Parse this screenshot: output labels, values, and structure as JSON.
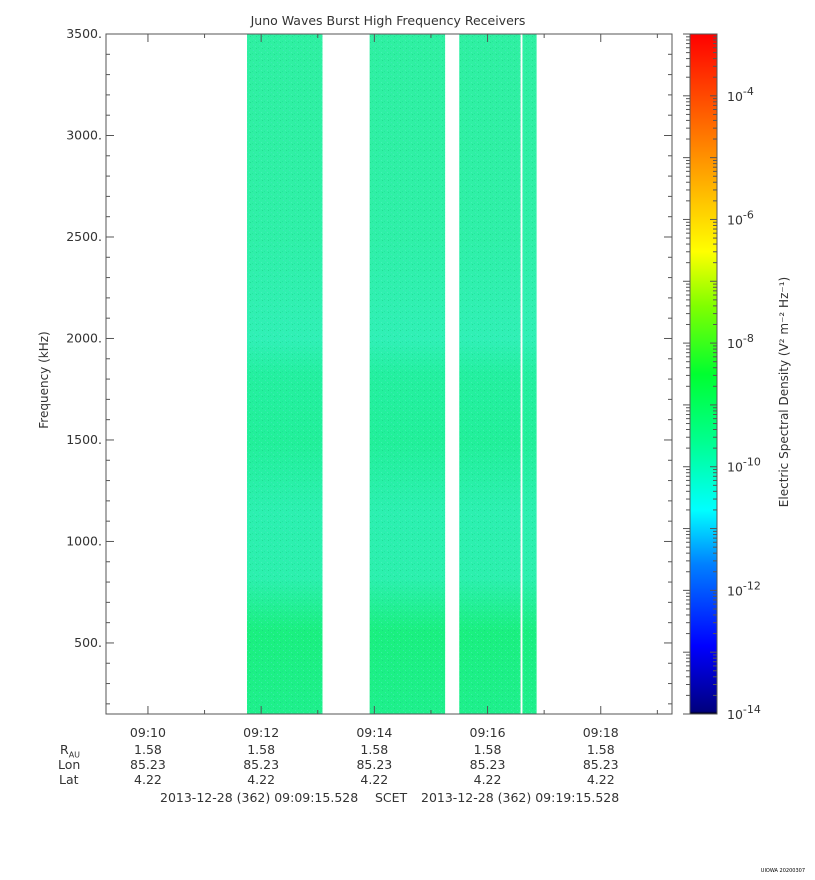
{
  "chart_data": {
    "type": "heatmap",
    "title": "Juno Waves Burst High Frequency Receivers",
    "ylabel": "Frequency (kHz)",
    "ylim": [
      150,
      3500
    ],
    "y_ticks": [
      500,
      1000,
      1500,
      2000,
      2500,
      3000,
      3500
    ],
    "y_tick_labels": [
      "500.",
      "1000.",
      "1500.",
      "2000.",
      "2500.",
      "3000.",
      "3500."
    ],
    "x_ticks": [
      "09:10",
      "09:12",
      "09:14",
      "09:16",
      "09:18"
    ],
    "x_range": [
      "09:09:15.528",
      "09:19:15.528"
    ],
    "data_blocks": [
      {
        "start": "09:11:45",
        "end": "09:13:05"
      },
      {
        "start": "09:13:55",
        "end": "09:15:15"
      },
      {
        "start": "09:15:30",
        "end": "09:16:35"
      },
      {
        "start": "09:16:37",
        "end": "09:16:52"
      }
    ],
    "spectral_level": "~1e-10",
    "colorbar": {
      "label": "Electric Spectral Density (V² m⁻² Hz⁻¹)",
      "range": [
        1e-14,
        0.001
      ],
      "scale": "log",
      "tick_labels": [
        "10-4",
        "10-6",
        "10-8",
        "10-10",
        "10-12",
        "10-14"
      ],
      "tick_exponents": [
        -4,
        -6,
        -8,
        -10,
        -12,
        -14
      ]
    }
  },
  "ephemeris": {
    "labels": [
      "RAU",
      "Lon",
      "Lat"
    ],
    "columns": [
      {
        "rau": "1.58",
        "lon": "85.23",
        "lat": "4.22"
      },
      {
        "rau": "1.58",
        "lon": "85.23",
        "lat": "4.22"
      },
      {
        "rau": "1.58",
        "lon": "85.23",
        "lat": "4.22"
      },
      {
        "rau": "1.58",
        "lon": "85.23",
        "lat": "4.22"
      },
      {
        "rau": "1.58",
        "lon": "85.23",
        "lat": "4.22"
      }
    ]
  },
  "footer": {
    "start": "2013-12-28 (362) 09:09:15.528",
    "scet": "SCET",
    "end": "2013-12-28 (362) 09:19:15.528"
  },
  "version_tag": "UIOWA 20200307"
}
